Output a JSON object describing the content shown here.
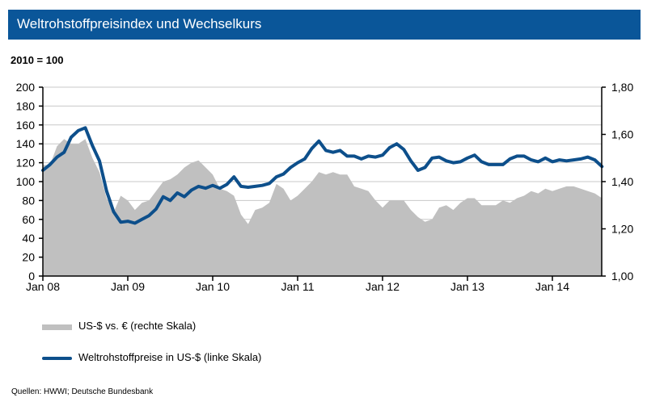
{
  "title": "Weltrohstoffpreisindex  und Wechselkurs",
  "subtitle": "2010 = 100",
  "source": "Quellen: HWWI; Deutsche Bundesbank",
  "colors": {
    "title_bar": "#0a5699",
    "index_line": "#0d4f8b",
    "fx_area": "#c0c0c0"
  },
  "chart_data": {
    "type": "line",
    "x_start": "Jan 08",
    "x_end": "Aug 14",
    "frequency": "monthly",
    "x_tick_labels": [
      "Jan 08",
      "Jan 09",
      "Jan 10",
      "Jan 11",
      "Jan 12",
      "Jan 13",
      "Jan 14"
    ],
    "y_left": {
      "ylim": [
        0,
        200
      ],
      "ticks": [
        "0",
        "20",
        "40",
        "60",
        "80",
        "100",
        "120",
        "140",
        "160",
        "180",
        "200"
      ]
    },
    "y_right": {
      "ylim": [
        1.0,
        1.8
      ],
      "ticks": [
        "1,00",
        "1,20",
        "1,40",
        "1,60",
        "1,80"
      ]
    },
    "grid": true,
    "legend_placement": "bottom",
    "series": [
      {
        "name": "US-$ vs. € (rechte Skala)",
        "type": "area",
        "axis": "right",
        "values": [
          1.47,
          1.47,
          1.55,
          1.58,
          1.56,
          1.56,
          1.58,
          1.5,
          1.44,
          1.33,
          1.27,
          1.34,
          1.32,
          1.28,
          1.31,
          1.32,
          1.36,
          1.4,
          1.41,
          1.43,
          1.46,
          1.48,
          1.49,
          1.46,
          1.43,
          1.37,
          1.36,
          1.34,
          1.26,
          1.22,
          1.28,
          1.29,
          1.31,
          1.39,
          1.37,
          1.32,
          1.34,
          1.37,
          1.4,
          1.44,
          1.43,
          1.44,
          1.43,
          1.43,
          1.38,
          1.37,
          1.36,
          1.32,
          1.29,
          1.32,
          1.32,
          1.32,
          1.28,
          1.25,
          1.23,
          1.24,
          1.29,
          1.3,
          1.28,
          1.31,
          1.33,
          1.33,
          1.3,
          1.3,
          1.3,
          1.32,
          1.31,
          1.33,
          1.34,
          1.36,
          1.35,
          1.37,
          1.36,
          1.37,
          1.38,
          1.38,
          1.37,
          1.36,
          1.35,
          1.33
        ]
      },
      {
        "name": "Weltrohstoffpreise in US-$ (linke Skala)",
        "type": "line",
        "axis": "left",
        "values": [
          112,
          118,
          126,
          131,
          147,
          154,
          157,
          138,
          122,
          90,
          68,
          57,
          58,
          56,
          60,
          64,
          71,
          84,
          80,
          88,
          84,
          91,
          95,
          93,
          96,
          93,
          97,
          105,
          95,
          94,
          95,
          96,
          98,
          105,
          108,
          115,
          120,
          124,
          135,
          143,
          133,
          131,
          133,
          127,
          127,
          124,
          127,
          126,
          128,
          136,
          140,
          134,
          122,
          112,
          115,
          125,
          126,
          122,
          120,
          121,
          125,
          128,
          121,
          118,
          118,
          118,
          124,
          127,
          127,
          123,
          121,
          125,
          121,
          123,
          122,
          123,
          124,
          126,
          123,
          116
        ]
      }
    ]
  }
}
